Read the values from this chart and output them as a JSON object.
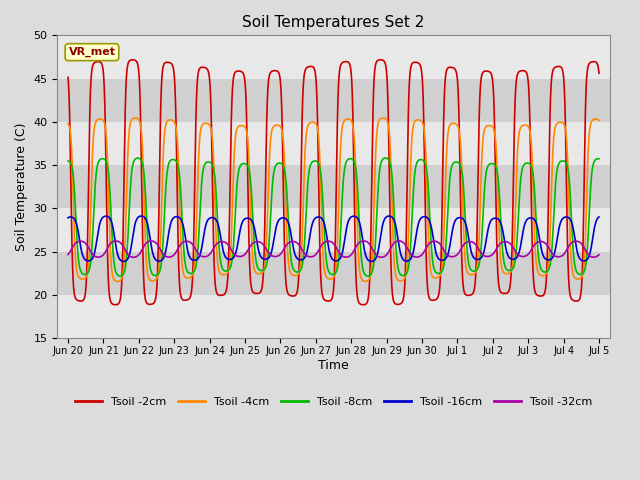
{
  "title": "Soil Temperatures Set 2",
  "xlabel": "Time",
  "ylabel": "Soil Temperature (C)",
  "ylim": [
    15,
    50
  ],
  "background_color": "#dcdcdc",
  "plot_bg_color": "#dcdcdc",
  "tick_labels": [
    "Jun 20",
    "Jun 21",
    "Jun 22",
    "Jun 23",
    "Jun 24",
    "Jun 25",
    "Jun 26",
    "Jun 27",
    "Jun 28",
    "Jun 29",
    "Jun 30",
    "Jul 1",
    "Jul 2",
    "Jul 3",
    "Jul 4",
    "Jul 5"
  ],
  "annotation": "VR_met",
  "series": [
    {
      "name": "Tsoil -2cm",
      "color": "#cc0000",
      "mean": 33.0,
      "amp": 13.5,
      "phase": 0.58,
      "lw": 1.2,
      "skew": 3.0
    },
    {
      "name": "Tsoil -4cm",
      "color": "#ff8800",
      "mean": 31.0,
      "amp": 9.0,
      "phase": 0.65,
      "lw": 1.2,
      "skew": 2.5
    },
    {
      "name": "Tsoil -8cm",
      "color": "#00bb00",
      "mean": 29.0,
      "amp": 6.5,
      "phase": 0.72,
      "lw": 1.2,
      "skew": 2.0
    },
    {
      "name": "Tsoil -16cm",
      "color": "#0000cc",
      "mean": 26.5,
      "amp": 2.5,
      "phase": 0.82,
      "lw": 1.2,
      "skew": 1.5
    },
    {
      "name": "Tsoil -32cm",
      "color": "#aa00aa",
      "mean": 25.3,
      "amp": 0.9,
      "phase": 1.1,
      "lw": 1.2,
      "skew": 1.0
    }
  ],
  "legend_colors": [
    "#cc0000",
    "#ff8800",
    "#00bb00",
    "#0000cc",
    "#aa00aa"
  ],
  "legend_labels": [
    "Tsoil -2cm",
    "Tsoil -4cm",
    "Tsoil -8cm",
    "Tsoil -16cm",
    "Tsoil -32cm"
  ],
  "zebra_colors": [
    "#e8e8e8",
    "#d0d0d0"
  ],
  "zebra_yticks": [
    15,
    20,
    25,
    30,
    35,
    40,
    45,
    50
  ]
}
